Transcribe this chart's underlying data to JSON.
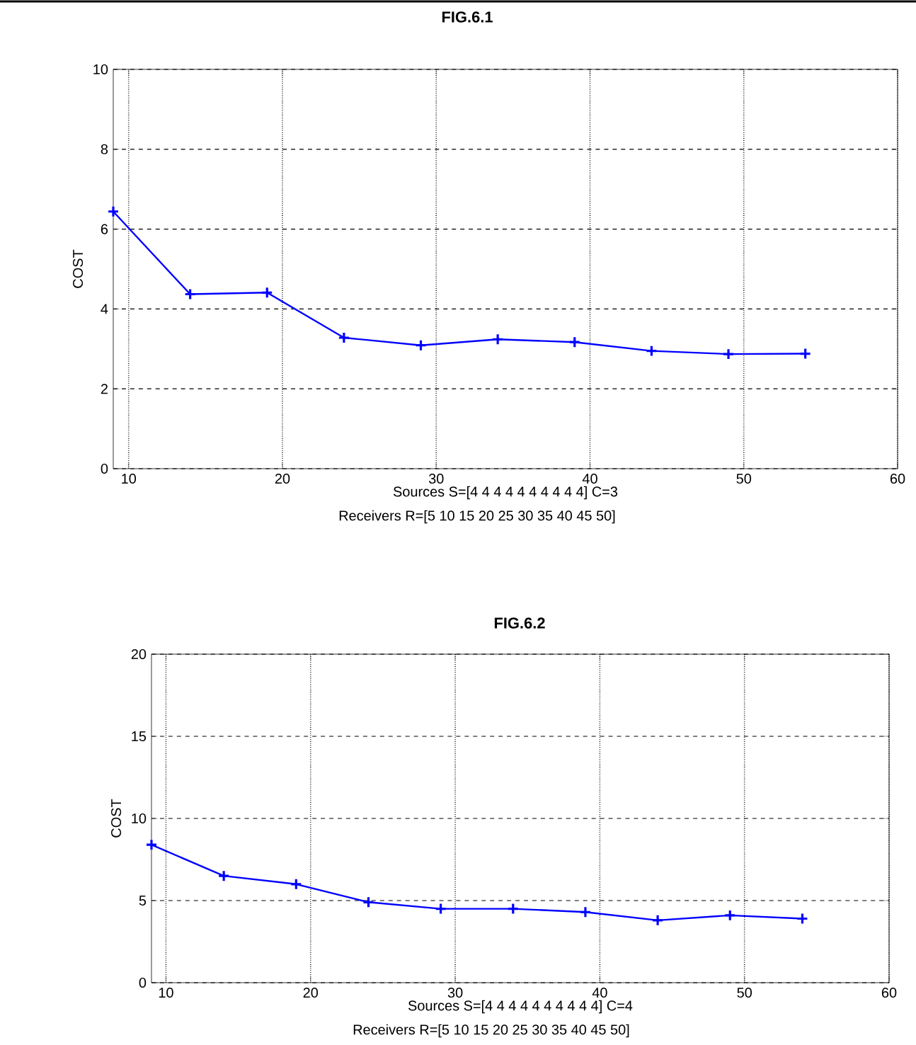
{
  "chart_data": [
    {
      "type": "line",
      "title": "FIG.6.1",
      "xlabel": "Sources S=[4 4 4 4 4 4 4 4 4 4] C=3",
      "ylabel": "COST",
      "annotations": [
        "Receivers R=[5 10 15 20 25 30 35 40 45 50]"
      ],
      "x": [
        9,
        14,
        19,
        24,
        29,
        34,
        39,
        44,
        49,
        54
      ],
      "series": [
        {
          "color": "#0000ff",
          "values": [
            6.44,
            4.37,
            4.41,
            3.28,
            3.09,
            3.24,
            3.17,
            2.95,
            2.87,
            2.88
          ]
        }
      ],
      "xlim": [
        9,
        60
      ],
      "xticks": [
        10,
        20,
        30,
        40,
        50,
        60
      ],
      "ylim": [
        0,
        10
      ],
      "yticks": [
        0,
        2,
        4,
        6,
        8,
        10
      ],
      "grid": true,
      "marker": "cross",
      "line_style": "solid"
    },
    {
      "type": "line",
      "title": "FIG.6.2",
      "xlabel": "Sources S=[4 4 4 4 4 4 4 4 4 4] C=4",
      "ylabel": "COST",
      "annotations": [
        "Receivers R=[5 10 15 20 25 30 35 40 45 50]"
      ],
      "x": [
        9,
        14,
        19,
        24,
        29,
        34,
        39,
        44,
        49,
        54
      ],
      "series": [
        {
          "color": "#0000ff",
          "values": [
            8.4,
            6.5,
            6.0,
            4.9,
            4.5,
            4.5,
            4.3,
            3.8,
            4.1,
            3.9
          ]
        }
      ],
      "xlim": [
        9,
        60
      ],
      "xticks": [
        10,
        20,
        30,
        40,
        50,
        60
      ],
      "ylim": [
        0,
        20
      ],
      "yticks": [
        0,
        5,
        10,
        15,
        20
      ],
      "grid": true,
      "marker": "cross",
      "line_style": "solid"
    }
  ]
}
